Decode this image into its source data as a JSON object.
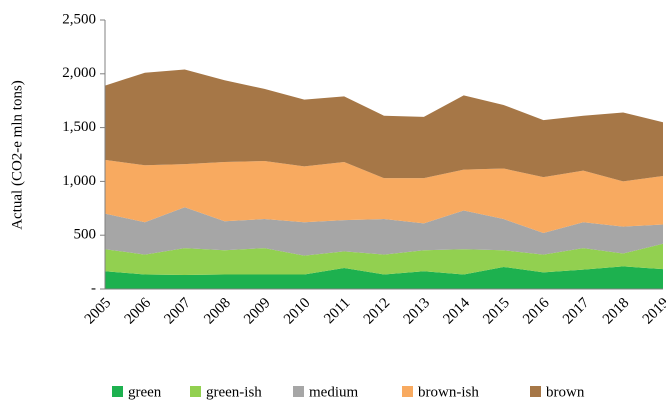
{
  "chart_data": {
    "type": "stacked_area",
    "y_label": "Actual (CO2-e mln tons)",
    "categories": [
      "2005",
      "2006",
      "2007",
      "2008",
      "2009",
      "2010",
      "2011",
      "2012",
      "2013",
      "2014",
      "2015",
      "2016",
      "2017",
      "2018",
      "2019"
    ],
    "series": [
      {
        "name": "green",
        "color": "#1db14f",
        "values": [
          165,
          135,
          130,
          135,
          135,
          135,
          195,
          135,
          165,
          135,
          205,
          155,
          180,
          210,
          185
        ]
      },
      {
        "name": "green-ish",
        "color": "#92d050",
        "values": [
          205,
          185,
          250,
          225,
          245,
          175,
          155,
          185,
          195,
          235,
          155,
          165,
          200,
          120,
          235
        ]
      },
      {
        "name": "medium",
        "color": "#a6a6a6",
        "values": [
          330,
          300,
          380,
          270,
          270,
          310,
          290,
          330,
          250,
          360,
          290,
          200,
          240,
          250,
          180
        ]
      },
      {
        "name": "brown-ish",
        "color": "#f8aa60",
        "values": [
          500,
          530,
          400,
          550,
          540,
          520,
          540,
          380,
          420,
          380,
          470,
          520,
          480,
          420,
          450
        ]
      },
      {
        "name": "brown",
        "color": "#a67747",
        "values": [
          690,
          860,
          880,
          760,
          670,
          620,
          610,
          580,
          570,
          690,
          590,
          530,
          510,
          640,
          500
        ]
      }
    ],
    "ylim": [
      0,
      2500
    ],
    "yticks": [
      {
        "value": 0,
        "label": "-"
      },
      500,
      {
        "value": 1000,
        "label": "1,000"
      },
      {
        "value": 1500,
        "label": "1,500"
      },
      {
        "value": 2000,
        "label": "2,000"
      },
      {
        "value": 2500,
        "label": "2,500"
      }
    ],
    "legend": "bottom"
  }
}
